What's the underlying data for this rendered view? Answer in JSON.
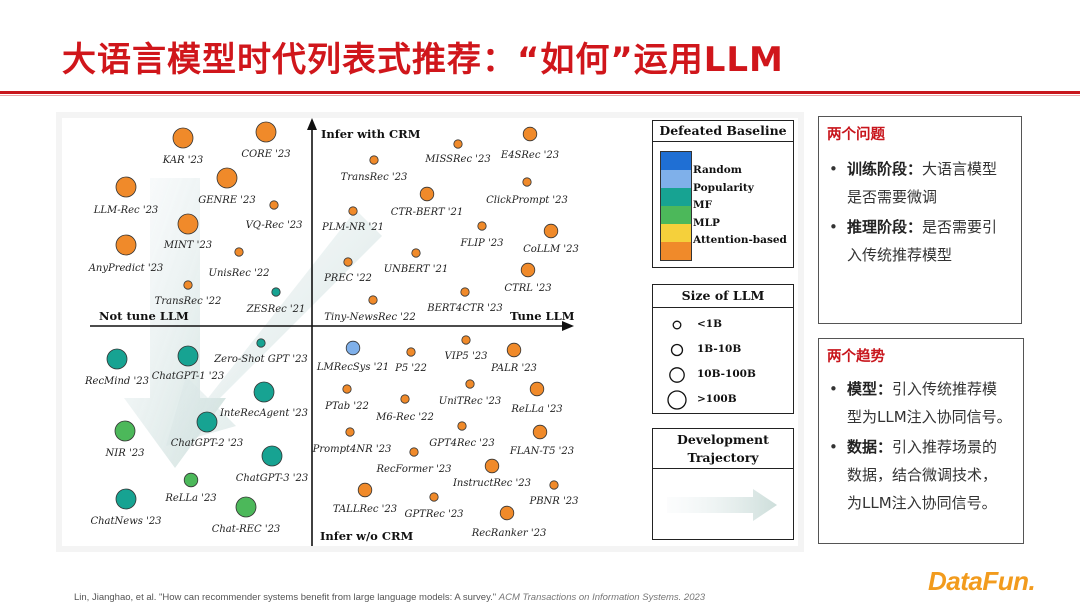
{
  "title": "大语言模型时代列表式推荐：“如何”运用LLM",
  "diagram": {
    "axis_labels": {
      "top": "Infer with CRM",
      "bottom": "Infer w/o CRM",
      "left": "Not tune LLM",
      "right": "Tune LLM"
    },
    "colors": {
      "Random": "#1f6fd4",
      "Popularity": "#7fb0ea",
      "MF": "#17a392",
      "MLP": "#4cb85a",
      "Attention-based": "#f08a2a"
    },
    "models": [
      {
        "name": "KAR '23",
        "cat": "Attention-based",
        "size": "10B-100B",
        "dot": [
          183,
          138
        ],
        "label": [
          183,
          159
        ]
      },
      {
        "name": "CORE '23",
        "cat": "Attention-based",
        "size": "10B-100B",
        "dot": [
          266,
          132
        ],
        "label": [
          266,
          153
        ]
      },
      {
        "name": "LLM-Rec '23",
        "cat": "Attention-based",
        "size": "10B-100B",
        "dot": [
          126,
          187
        ],
        "label": [
          126,
          209
        ]
      },
      {
        "name": "GENRE '23",
        "cat": "Attention-based",
        "size": "10B-100B",
        "dot": [
          227,
          178
        ],
        "label": [
          227,
          199
        ]
      },
      {
        "name": "VQ-Rec '23",
        "cat": "Attention-based",
        "size": "<1B",
        "dot": [
          274,
          205
        ],
        "label": [
          274,
          224
        ]
      },
      {
        "name": "MINT '23",
        "cat": "Attention-based",
        "size": "10B-100B",
        "dot": [
          188,
          224
        ],
        "label": [
          188,
          244
        ]
      },
      {
        "name": "AnyPredict '23",
        "cat": "Attention-based",
        "size": "10B-100B",
        "dot": [
          126,
          245
        ],
        "label": [
          126,
          267
        ]
      },
      {
        "name": "UnisRec '22",
        "cat": "Attention-based",
        "size": "<1B",
        "dot": [
          239,
          252
        ],
        "label": [
          239,
          272
        ]
      },
      {
        "name": "TransRec '22",
        "cat": "Attention-based",
        "size": "<1B",
        "dot": [
          188,
          285
        ],
        "label": [
          188,
          300
        ]
      },
      {
        "name": "ZESRec '21",
        "cat": "MF",
        "size": "<1B",
        "dot": [
          276,
          292
        ],
        "label": [
          276,
          308
        ]
      },
      {
        "name": "MISSRec '23",
        "cat": "Attention-based",
        "size": "<1B",
        "dot": [
          458,
          144
        ],
        "label": [
          458,
          158
        ]
      },
      {
        "name": "E4SRec '23",
        "cat": "Attention-based",
        "size": "1B-10B",
        "dot": [
          530,
          134
        ],
        "label": [
          530,
          154
        ]
      },
      {
        "name": "TransRec '23",
        "cat": "Attention-based",
        "size": "<1B",
        "dot": [
          374,
          160
        ],
        "label": [
          374,
          176
        ]
      },
      {
        "name": "CTR-BERT '21",
        "cat": "Attention-based",
        "size": "1B-10B",
        "dot": [
          427,
          194
        ],
        "label": [
          427,
          211
        ]
      },
      {
        "name": "ClickPrompt '23",
        "cat": "Attention-based",
        "size": "<1B",
        "dot": [
          527,
          182
        ],
        "label": [
          527,
          199
        ]
      },
      {
        "name": "PLM-NR '21",
        "cat": "Attention-based",
        "size": "<1B",
        "dot": [
          353,
          211
        ],
        "label": [
          353,
          226
        ]
      },
      {
        "name": "FLIP '23",
        "cat": "Attention-based",
        "size": "<1B",
        "dot": [
          482,
          226
        ],
        "label": [
          482,
          242
        ]
      },
      {
        "name": "CoLLM '23",
        "cat": "Attention-based",
        "size": "1B-10B",
        "dot": [
          551,
          231
        ],
        "label": [
          551,
          248
        ]
      },
      {
        "name": "UNBERT '21",
        "cat": "Attention-based",
        "size": "<1B",
        "dot": [
          416,
          253
        ],
        "label": [
          416,
          268
        ]
      },
      {
        "name": "PREC '22",
        "cat": "Attention-based",
        "size": "<1B",
        "dot": [
          348,
          262
        ],
        "label": [
          348,
          277
        ]
      },
      {
        "name": "CTRL '23",
        "cat": "Attention-based",
        "size": "1B-10B",
        "dot": [
          528,
          270
        ],
        "label": [
          528,
          287
        ]
      },
      {
        "name": "BERT4CTR '23",
        "cat": "Attention-based",
        "size": "<1B",
        "dot": [
          465,
          292
        ],
        "label": [
          465,
          307
        ]
      },
      {
        "name": "Tiny-NewsRec '22",
        "cat": "Attention-based",
        "size": "<1B",
        "dot": [
          373,
          300
        ],
        "label": [
          370,
          316
        ]
      },
      {
        "name": "Zero-Shot GPT '23",
        "cat": "MF",
        "size": "<1B",
        "dot": [
          261,
          343
        ],
        "label": [
          261,
          358
        ]
      },
      {
        "name": "RecMind '23",
        "cat": "MF",
        "size": "10B-100B",
        "dot": [
          117,
          359
        ],
        "label": [
          117,
          380
        ]
      },
      {
        "name": "ChatGPT-1 '23",
        "cat": "MF",
        "size": "10B-100B",
        "dot": [
          188,
          356
        ],
        "label": [
          188,
          375
        ]
      },
      {
        "name": "InteRecAgent '23",
        "cat": "MF",
        "size": "10B-100B",
        "dot": [
          264,
          392
        ],
        "label": [
          264,
          412
        ]
      },
      {
        "name": "ChatGPT-2 '23",
        "cat": "MF",
        "size": "10B-100B",
        "dot": [
          207,
          422
        ],
        "label": [
          207,
          442
        ]
      },
      {
        "name": "NIR '23",
        "cat": "MLP",
        "size": "10B-100B",
        "dot": [
          125,
          431
        ],
        "label": [
          125,
          452
        ]
      },
      {
        "name": "ChatGPT-3 '23",
        "cat": "MF",
        "size": "10B-100B",
        "dot": [
          272,
          456
        ],
        "label": [
          272,
          477
        ]
      },
      {
        "name": "ReLLa '23",
        "cat": "MLP",
        "size": "1B-10B",
        "dot": [
          191,
          480
        ],
        "label": [
          191,
          497
        ]
      },
      {
        "name": "ChatNews '23",
        "cat": "MF",
        "size": "10B-100B",
        "dot": [
          126,
          499
        ],
        "label": [
          126,
          520
        ]
      },
      {
        "name": "Chat-REC '23",
        "cat": "MLP",
        "size": "10B-100B",
        "dot": [
          246,
          507
        ],
        "label": [
          246,
          528
        ]
      },
      {
        "name": "LMRecSys '21",
        "cat": "Popularity",
        "size": "1B-10B",
        "dot": [
          353,
          348
        ],
        "label": [
          353,
          366
        ]
      },
      {
        "name": "P5 '22",
        "cat": "Attention-based",
        "size": "<1B",
        "dot": [
          411,
          352
        ],
        "label": [
          411,
          367
        ]
      },
      {
        "name": "VIP5 '23",
        "cat": "Attention-based",
        "size": "<1B",
        "dot": [
          466,
          340
        ],
        "label": [
          466,
          355
        ]
      },
      {
        "name": "PALR '23",
        "cat": "Attention-based",
        "size": "1B-10B",
        "dot": [
          514,
          350
        ],
        "label": [
          514,
          367
        ]
      },
      {
        "name": "PTab '22",
        "cat": "Attention-based",
        "size": "<1B",
        "dot": [
          347,
          389
        ],
        "label": [
          347,
          405
        ]
      },
      {
        "name": "UniTRec '23",
        "cat": "Attention-based",
        "size": "<1B",
        "dot": [
          470,
          384
        ],
        "label": [
          470,
          400
        ]
      },
      {
        "name": "ReLLa '23",
        "cat": "Attention-based",
        "size": "1B-10B",
        "dot": [
          537,
          389
        ],
        "label": [
          537,
          408
        ]
      },
      {
        "name": "M6-Rec '22",
        "cat": "Attention-based",
        "size": "<1B",
        "dot": [
          405,
          399
        ],
        "label": [
          405,
          416
        ]
      },
      {
        "name": "Prompt4NR '23",
        "cat": "Attention-based",
        "size": "<1B",
        "dot": [
          350,
          432
        ],
        "label": [
          352,
          448
        ]
      },
      {
        "name": "GPT4Rec '23",
        "cat": "Attention-based",
        "size": "<1B",
        "dot": [
          462,
          426
        ],
        "label": [
          462,
          442
        ]
      },
      {
        "name": "FLAN-T5 '23",
        "cat": "Attention-based",
        "size": "1B-10B",
        "dot": [
          540,
          432
        ],
        "label": [
          542,
          450
        ]
      },
      {
        "name": "RecFormer '23",
        "cat": "Attention-based",
        "size": "<1B",
        "dot": [
          414,
          452
        ],
        "label": [
          414,
          468
        ]
      },
      {
        "name": "InstructRec '23",
        "cat": "Attention-based",
        "size": "1B-10B",
        "dot": [
          492,
          466
        ],
        "label": [
          492,
          482
        ]
      },
      {
        "name": "PBNR '23",
        "cat": "Attention-based",
        "size": "<1B",
        "dot": [
          554,
          485
        ],
        "label": [
          554,
          500
        ]
      },
      {
        "name": "TALLRec '23",
        "cat": "Attention-based",
        "size": "1B-10B",
        "dot": [
          365,
          490
        ],
        "label": [
          365,
          508
        ]
      },
      {
        "name": "GPTRec '23",
        "cat": "Attention-based",
        "size": "<1B",
        "dot": [
          434,
          497
        ],
        "label": [
          434,
          513
        ]
      },
      {
        "name": "RecRanker '23",
        "cat": "Attention-based",
        "size": "1B-10B",
        "dot": [
          507,
          513
        ],
        "label": [
          509,
          532
        ]
      }
    ]
  },
  "legend": {
    "baseline_title": "Defeated Baseline",
    "baseline_items": [
      "Random",
      "Popularity",
      "MF",
      "MLP",
      "Attention-based"
    ],
    "size_title": "Size of LLM",
    "size_items": [
      "<1B",
      "1B-10B",
      "10B-100B",
      ">100B"
    ],
    "trajectory_title": "Development Trajectory"
  },
  "problems": {
    "heading": "两个问题",
    "items": [
      {
        "bold": "训练阶段：",
        "text": "大语言模型",
        "cont": "是否需要微调"
      },
      {
        "bold": "推理阶段：",
        "text": "是否需要引",
        "cont": "入传统推荐模型"
      }
    ]
  },
  "trends": {
    "heading": "两个趋势",
    "items": [
      {
        "bold": "模型：",
        "text": "引入传统推荐模",
        "cont": [
          "型为LLM注入协同信号。"
        ]
      },
      {
        "bold": "数据：",
        "text": "引入推荐场景的",
        "cont": [
          "数据，结合微调技术，",
          "为LLM注入协同信号。"
        ]
      }
    ]
  },
  "citation": {
    "text": "Lin, Jianghao, et al. \"How can recommender systems benefit from large language models: A survey.\" ",
    "journal": "ACM Transactions on Information Systems. 2023"
  },
  "logo": {
    "text": "DataFun."
  }
}
